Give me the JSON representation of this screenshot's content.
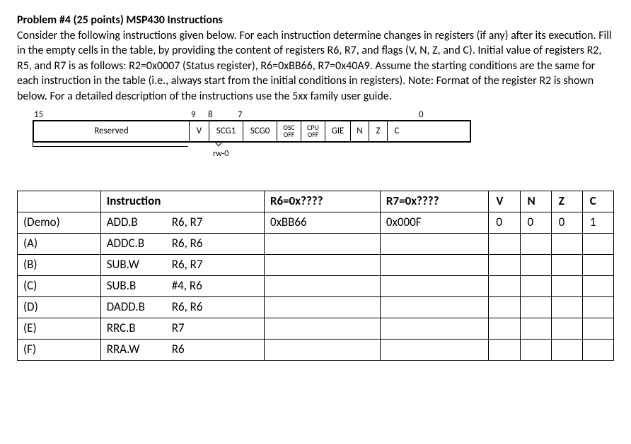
{
  "header": {
    "title": "Problem #4 (25 points) MSP430 Instructions",
    "paragraph": "Consider the following instructions given below. For each instruction determine changes in registers (if any) after its execution. Fill in the empty cells in the table, by providing the content of registers R6, R7, and flags (V, N, Z, and C).  Initial value of registers R2, R5, and R7 is as follows: R2=0x0007 (Status register), R6=0xBB66, R7=0x40A9. Assume the starting conditions are the same for each instruction in the table (i.e., always start from the initial conditions in registers). Note: Format of the register R2 is shown below. For a detailed description of the instructions use the 5xx family user guide."
  },
  "register_diagram": {
    "bit_labels": {
      "b15": "15",
      "b9": "9",
      "b8": "8",
      "b7": "7",
      "b0": "0"
    },
    "cells": {
      "reserved": "Reserved",
      "v": "V",
      "scg1": "SCG1",
      "scg0": "SCG0",
      "osc_top": "OSC",
      "osc_bot": "OFF",
      "cpu_top": "CPU",
      "cpu_bot": "OFF",
      "gie": "GIE",
      "n": "N",
      "z": "Z",
      "c": "C"
    },
    "rw_label": "rw-0"
  },
  "table": {
    "headers": {
      "instruction": "Instruction",
      "r6": "R6=0x????",
      "r7": "R7=0x????",
      "v": "V",
      "n": "N",
      "z": "Z",
      "c": "C"
    },
    "rows": [
      {
        "label": "(Demo)",
        "op": "ADD.B",
        "args": "R6, R7",
        "r6": "0xBB66",
        "r7": "0x000F",
        "v": "0",
        "n": "0",
        "z": "0",
        "c": "1"
      },
      {
        "label": "(A)",
        "op": "ADDC.B",
        "args": "R6, R6",
        "r6": "",
        "r7": "",
        "v": "",
        "n": "",
        "z": "",
        "c": ""
      },
      {
        "label": "(B)",
        "op": "SUB.W",
        "args": "R6, R7",
        "r6": "",
        "r7": "",
        "v": "",
        "n": "",
        "z": "",
        "c": ""
      },
      {
        "label": "(C)",
        "op": "SUB.B",
        "args": "#4, R6",
        "r6": "",
        "r7": "",
        "v": "",
        "n": "",
        "z": "",
        "c": ""
      },
      {
        "label": "(D)",
        "op": "DADD.B",
        "args": "R6, R6",
        "r6": "",
        "r7": "",
        "v": "",
        "n": "",
        "z": "",
        "c": ""
      },
      {
        "label": "(E)",
        "op": "RRC.B",
        "args": "R7",
        "r6": "",
        "r7": "",
        "v": "",
        "n": "",
        "z": "",
        "c": ""
      },
      {
        "label": "(F)",
        "op": "RRA.W",
        "args": "R6",
        "r6": "",
        "r7": "",
        "v": "",
        "n": "",
        "z": "",
        "c": ""
      }
    ]
  }
}
